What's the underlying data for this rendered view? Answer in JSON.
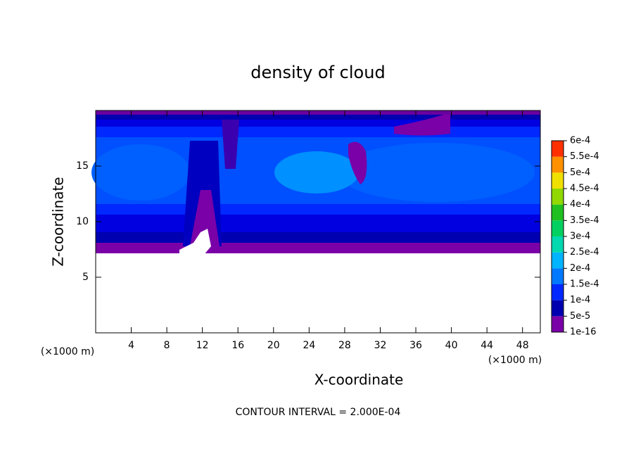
{
  "chart_data": {
    "type": "contour",
    "title": "density of cloud",
    "xlabel": "X-coordinate",
    "ylabel": "Z-coordinate",
    "x_unit": "(×1000 m)",
    "y_unit": "(×1000 m)",
    "xlim": [
      0,
      50
    ],
    "xticks": [
      4,
      8,
      12,
      16,
      20,
      24,
      28,
      32,
      36,
      40,
      44,
      48
    ],
    "ylim": [
      0,
      20
    ],
    "yticks": [
      5,
      10,
      15
    ],
    "colorbar": {
      "levels": [
        1e-16,
        {
          "value": 5e-05,
          "label": "5e-5"
        },
        {
          "value": 0.0001,
          "label": "1e-4"
        },
        {
          "value": 0.00015,
          "label": "1.5e-4"
        },
        {
          "value": 0.0002,
          "label": "2e-4"
        },
        {
          "value": 0.00025,
          "label": "2.5e-4"
        },
        {
          "value": 0.0003,
          "label": "3e-4"
        },
        {
          "value": 0.00035,
          "label": "3.5e-4"
        },
        {
          "value": 0.0004,
          "label": "4e-4"
        },
        {
          "value": 0.00045,
          "label": "4.5e-4"
        },
        {
          "value": 0.0005,
          "label": "5e-4"
        },
        {
          "value": 0.00055,
          "label": "5.5e-4"
        },
        {
          "value": 0.0006,
          "label": "6e-4"
        }
      ],
      "colors": [
        "#7a00a8",
        "#0000b0",
        "#0028ff",
        "#0078ff",
        "#00b4ff",
        "#00d8b0",
        "#00d060",
        "#20c020",
        "#90d800",
        "#f0e000",
        "#ff9000",
        "#ff3000"
      ]
    },
    "annotation": "CONTOUR INTERVAL = 2.000E-04"
  }
}
